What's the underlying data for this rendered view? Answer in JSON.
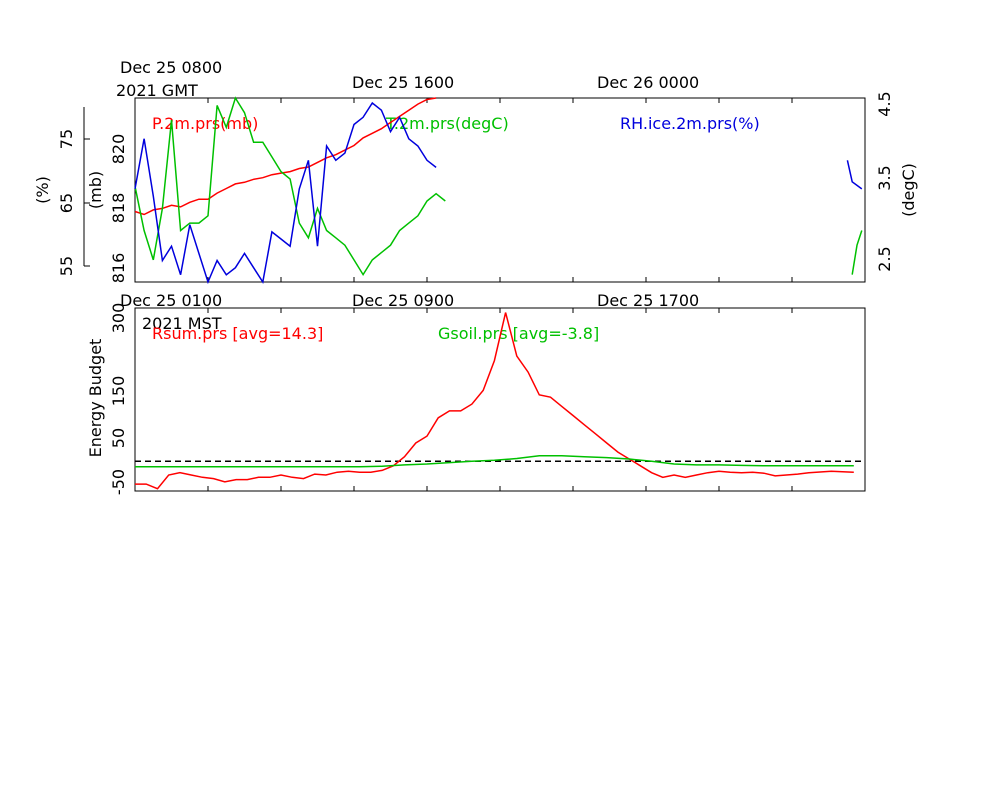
{
  "chart_data": [
    {
      "type": "line",
      "panel": "top",
      "time_axis_top": {
        "labels": [
          {
            "line1": "Dec 25 0800",
            "line2": "2021 GMT"
          },
          {
            "line1": "Dec 25 1600",
            "line2": ""
          },
          {
            "line1": "Dec 26 0000",
            "line2": ""
          }
        ]
      },
      "y_axes": {
        "rh": {
          "label": "(%)",
          "ticks": [
            "55",
            "65",
            "75"
          ],
          "range": [
            55,
            80.7
          ]
        },
        "p": {
          "label": "(mb)",
          "ticks": [
            "816",
            "818",
            "820"
          ],
          "range": [
            815.8,
            821.8
          ]
        },
        "t": {
          "label": "(degC)",
          "ticks": [
            "2.5",
            "3.5",
            "4.5"
          ],
          "range": [
            2.1,
            4.6
          ]
        }
      },
      "x_range_hours": [
        0,
        30
      ],
      "series": [
        {
          "name": "P.2m.prs(mb)",
          "color": "#ff0000",
          "axis": "p",
          "points": [
            [
              0,
              818.1
            ],
            [
              0.5,
              818.0
            ],
            [
              1,
              818.15
            ],
            [
              1.5,
              818.2
            ],
            [
              2,
              818.3
            ],
            [
              2.5,
              818.25
            ],
            [
              3,
              818.4
            ],
            [
              3.5,
              818.5
            ],
            [
              4,
              818.5
            ],
            [
              4.5,
              818.7
            ],
            [
              5,
              818.85
            ],
            [
              5.5,
              819.0
            ],
            [
              6,
              819.05
            ],
            [
              6.5,
              819.15
            ],
            [
              7,
              819.2
            ],
            [
              7.5,
              819.3
            ],
            [
              8,
              819.35
            ],
            [
              8.5,
              819.4
            ],
            [
              9,
              819.5
            ],
            [
              9.5,
              819.55
            ],
            [
              10,
              819.7
            ],
            [
              10.5,
              819.85
            ],
            [
              11,
              819.95
            ],
            [
              11.5,
              820.1
            ],
            [
              12,
              820.25
            ],
            [
              12.5,
              820.5
            ],
            [
              13,
              820.65
            ],
            [
              13.5,
              820.8
            ],
            [
              14,
              821.0
            ],
            [
              14.5,
              821.2
            ],
            [
              15,
              821.4
            ],
            [
              15.5,
              821.6
            ],
            [
              16,
              821.75
            ],
            [
              16.5,
              821.9
            ]
          ]
        },
        {
          "name": "T.2m.prs(degC)",
          "color": "#00c000",
          "axis": "t",
          "points": [
            [
              0,
              3.4
            ],
            [
              0.5,
              2.8
            ],
            [
              1,
              2.4
            ],
            [
              1.5,
              3.1
            ],
            [
              2,
              4.3
            ],
            [
              2.5,
              2.8
            ],
            [
              3,
              2.9
            ],
            [
              3.5,
              2.9
            ],
            [
              4,
              3.0
            ],
            [
              4.5,
              4.5
            ],
            [
              5,
              4.2
            ],
            [
              5.5,
              4.6
            ],
            [
              6,
              4.4
            ],
            [
              6.5,
              4.0
            ],
            [
              7,
              4.0
            ],
            [
              7.5,
              3.8
            ],
            [
              8,
              3.6
            ],
            [
              8.5,
              3.5
            ],
            [
              9,
              2.9
            ],
            [
              9.5,
              2.7
            ],
            [
              10,
              3.1
            ],
            [
              10.5,
              2.8
            ],
            [
              11,
              2.7
            ],
            [
              11.5,
              2.6
            ],
            [
              12,
              2.4
            ],
            [
              12.5,
              2.2
            ],
            [
              13,
              2.4
            ],
            [
              13.5,
              2.5
            ],
            [
              14,
              2.6
            ],
            [
              14.5,
              2.8
            ],
            [
              15,
              2.9
            ],
            [
              15.5,
              3.0
            ],
            [
              16,
              3.2
            ],
            [
              16.5,
              3.3
            ],
            [
              17,
              3.2
            ]
          ],
          "points_b": [
            [
              30,
              2.2
            ],
            [
              30.2,
              2.6
            ],
            [
              30.4,
              2.8
            ]
          ]
        },
        {
          "name": "RH.ice.2m.prs(%)",
          "color": "#0000dd",
          "axis": "rh",
          "points": [
            [
              0,
              68
            ],
            [
              0.5,
              75
            ],
            [
              1,
              67
            ],
            [
              1.5,
              58
            ],
            [
              2,
              60
            ],
            [
              2.5,
              56
            ],
            [
              3,
              63
            ],
            [
              3.5,
              59
            ],
            [
              4,
              55
            ],
            [
              4.5,
              58
            ],
            [
              5,
              56
            ],
            [
              5.5,
              57
            ],
            [
              6,
              59
            ],
            [
              6.5,
              57
            ],
            [
              7,
              55
            ],
            [
              7.5,
              62
            ],
            [
              8,
              61
            ],
            [
              8.5,
              60
            ],
            [
              9,
              68
            ],
            [
              9.5,
              72
            ],
            [
              10,
              60
            ],
            [
              10.5,
              74
            ],
            [
              11,
              72
            ],
            [
              11.5,
              73
            ],
            [
              12,
              77
            ],
            [
              12.5,
              78
            ],
            [
              13,
              80
            ],
            [
              13.5,
              79
            ],
            [
              14,
              76
            ],
            [
              14.5,
              78
            ],
            [
              15,
              75
            ],
            [
              15.5,
              74
            ],
            [
              16,
              72
            ],
            [
              16.5,
              71
            ]
          ],
          "points_b": [
            [
              29.8,
              72
            ],
            [
              30,
              69
            ],
            [
              30.4,
              68
            ]
          ]
        }
      ]
    },
    {
      "type": "line",
      "panel": "bottom",
      "time_axis_bottom": {
        "labels": [
          {
            "line1": "Dec 25 0100",
            "line2": "2021 MST"
          },
          {
            "line1": "Dec 25 0900",
            "line2": ""
          },
          {
            "line1": "Dec 25 1700",
            "line2": ""
          }
        ]
      },
      "ylabel": "Energy Budget",
      "y_ticks": [
        "-50",
        "50",
        "150",
        "300"
      ],
      "ylim": [
        -65,
        335
      ],
      "x_range_hours": [
        0,
        30
      ],
      "zero_line": {
        "value": 0,
        "style": "dashed",
        "color": "#000000"
      },
      "series": [
        {
          "name": "Rsum.prs [avg=14.3]",
          "color": "#ff0000",
          "points": [
            [
              0,
              -50
            ],
            [
              0.5,
              -50
            ],
            [
              1,
              -60
            ],
            [
              1.5,
              -30
            ],
            [
              2,
              -25
            ],
            [
              2.5,
              -30
            ],
            [
              3,
              -35
            ],
            [
              3.5,
              -38
            ],
            [
              4,
              -45
            ],
            [
              4.5,
              -40
            ],
            [
              5,
              -40
            ],
            [
              5.5,
              -35
            ],
            [
              6,
              -35
            ],
            [
              6.5,
              -30
            ],
            [
              7,
              -35
            ],
            [
              7.5,
              -38
            ],
            [
              8,
              -28
            ],
            [
              8.5,
              -30
            ],
            [
              9,
              -24
            ],
            [
              9.5,
              -22
            ],
            [
              10,
              -24
            ],
            [
              10.5,
              -24
            ],
            [
              11,
              -20
            ],
            [
              11.5,
              -10
            ],
            [
              12,
              10
            ],
            [
              12.5,
              40
            ],
            [
              13,
              55
            ],
            [
              13.5,
              95
            ],
            [
              14,
              110
            ],
            [
              14.5,
              110
            ],
            [
              15,
              125
            ],
            [
              15.5,
              155
            ],
            [
              16,
              220
            ],
            [
              16.5,
              325
            ],
            [
              17,
              230
            ],
            [
              17.5,
              195
            ],
            [
              18,
              145
            ],
            [
              18.5,
              140
            ],
            [
              19,
              120
            ],
            [
              19.5,
              100
            ],
            [
              20,
              80
            ],
            [
              20.5,
              60
            ],
            [
              21,
              40
            ],
            [
              21.5,
              20
            ],
            [
              22,
              5
            ],
            [
              22.5,
              -10
            ],
            [
              23,
              -25
            ],
            [
              23.5,
              -35
            ],
            [
              24,
              -30
            ],
            [
              24.5,
              -35
            ],
            [
              25,
              -30
            ],
            [
              25.5,
              -25
            ],
            [
              26,
              -22
            ],
            [
              26.5,
              -24
            ],
            [
              27,
              -25
            ],
            [
              27.5,
              -24
            ],
            [
              28,
              -26
            ],
            [
              28.5,
              -32
            ],
            [
              29,
              -30
            ],
            [
              29.5,
              -28
            ],
            [
              30,
              -25
            ],
            [
              31,
              -22
            ],
            [
              31.5,
              -23
            ],
            [
              32,
              -24
            ]
          ]
        },
        {
          "name": "Gsoil.prs [avg=-3.8]",
          "color": "#00c000",
          "points": [
            [
              0,
              -12
            ],
            [
              2,
              -12
            ],
            [
              4,
              -12
            ],
            [
              6,
              -12
            ],
            [
              8,
              -12
            ],
            [
              10,
              -12
            ],
            [
              11,
              -11
            ],
            [
              12,
              -8
            ],
            [
              13,
              -6
            ],
            [
              14,
              -3
            ],
            [
              15,
              0
            ],
            [
              16,
              2
            ],
            [
              17,
              6
            ],
            [
              18,
              12
            ],
            [
              19,
              12
            ],
            [
              20,
              10
            ],
            [
              21,
              8
            ],
            [
              22,
              5
            ],
            [
              23,
              0
            ],
            [
              24,
              -6
            ],
            [
              25,
              -8
            ],
            [
              26,
              -8
            ],
            [
              27,
              -9
            ],
            [
              28,
              -10
            ],
            [
              30,
              -10
            ],
            [
              32,
              -10
            ]
          ]
        }
      ]
    }
  ]
}
